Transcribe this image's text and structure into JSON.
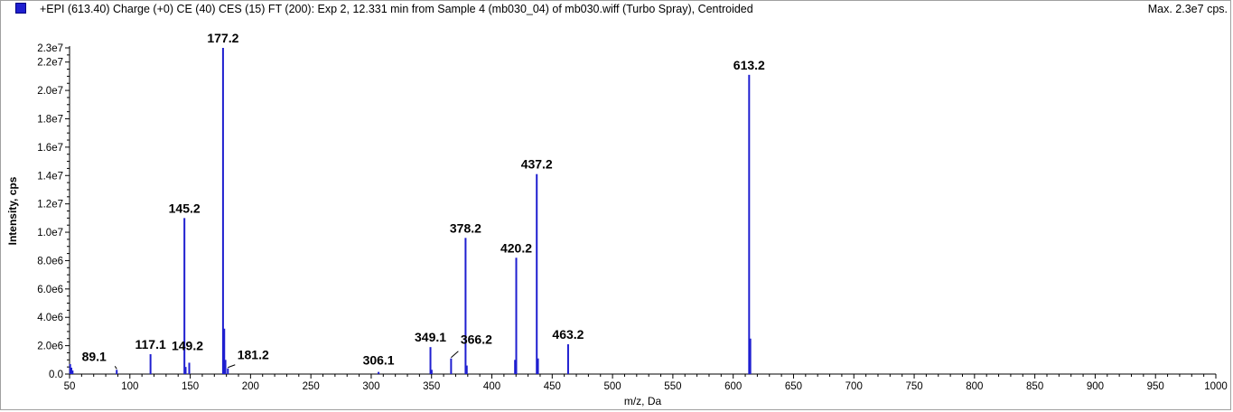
{
  "header": {
    "title": "+EPI (613.40) Charge (+0) CE (40) CES (15) FT (200): Exp 2, 12.331 min from Sample 4 (mb030_04) of mb030.wiff (Turbo Spray), Centroided",
    "max": "Max. 2.3e7 cps.",
    "series_color": "#1f1fd0"
  },
  "chart_data": {
    "type": "bar",
    "xlabel": "m/z, Da",
    "ylabel": "Intensity, cps",
    "xlim": [
      50,
      1000
    ],
    "ylim": [
      0,
      23000000
    ],
    "x_ticks": [
      50,
      100,
      150,
      200,
      250,
      300,
      350,
      400,
      450,
      500,
      550,
      600,
      650,
      700,
      750,
      800,
      850,
      900,
      950,
      1000
    ],
    "y_ticks": [
      {
        "value": 0,
        "label": "0.0"
      },
      {
        "value": 2000000,
        "label": "2.0e6"
      },
      {
        "value": 4000000,
        "label": "4.0e6"
      },
      {
        "value": 6000000,
        "label": "6.0e6"
      },
      {
        "value": 8000000,
        "label": "8.0e6"
      },
      {
        "value": 10000000,
        "label": "1.0e7"
      },
      {
        "value": 12000000,
        "label": "1.2e7"
      },
      {
        "value": 14000000,
        "label": "1.4e7"
      },
      {
        "value": 16000000,
        "label": "1.6e7"
      },
      {
        "value": 18000000,
        "label": "1.8e7"
      },
      {
        "value": 20000000,
        "label": "2.0e7"
      },
      {
        "value": 22000000,
        "label": "2.2e7"
      },
      {
        "value": 23000000,
        "label": "2.3e7"
      }
    ],
    "series": [
      {
        "mz": [
          50.5,
          51.5,
          52.5,
          89.1,
          117.1,
          145.2,
          146.2,
          149.2,
          177.2,
          178.2,
          179.2,
          181.2,
          306.1,
          349.1,
          350.1,
          366.2,
          378.2,
          379.2,
          419.2,
          420.2,
          437.2,
          438.2,
          463.2,
          613.2,
          614.2
        ],
        "intensity": [
          700000,
          450000,
          250000,
          300000,
          1400000,
          11000000,
          500000,
          800000,
          23000000,
          3200000,
          1000000,
          400000,
          150000,
          1900000,
          300000,
          1100000,
          9600000,
          600000,
          1000000,
          8200000,
          14100000,
          1100000,
          2100000,
          21100000,
          2500000
        ]
      }
    ],
    "peak_labels": [
      {
        "mz": 89.1,
        "intensity": 300000,
        "text": "89.1"
      },
      {
        "mz": 117.1,
        "intensity": 1400000,
        "text": "117.1"
      },
      {
        "mz": 145.2,
        "intensity": 11000000,
        "text": "145.2"
      },
      {
        "mz": 149.2,
        "intensity": 800000,
        "text": "149.2"
      },
      {
        "mz": 177.2,
        "intensity": 23000000,
        "text": "177.2"
      },
      {
        "mz": 181.2,
        "intensity": 400000,
        "text": "181.2"
      },
      {
        "mz": 306.1,
        "intensity": 150000,
        "text": "306.1"
      },
      {
        "mz": 349.1,
        "intensity": 1900000,
        "text": "349.1"
      },
      {
        "mz": 366.2,
        "intensity": 1100000,
        "text": "366.2"
      },
      {
        "mz": 378.2,
        "intensity": 9600000,
        "text": "378.2"
      },
      {
        "mz": 420.2,
        "intensity": 8200000,
        "text": "420.2"
      },
      {
        "mz": 437.2,
        "intensity": 14100000,
        "text": "437.2"
      },
      {
        "mz": 463.2,
        "intensity": 2100000,
        "text": "463.2"
      },
      {
        "mz": 613.2,
        "intensity": 21100000,
        "text": "613.2"
      }
    ]
  }
}
